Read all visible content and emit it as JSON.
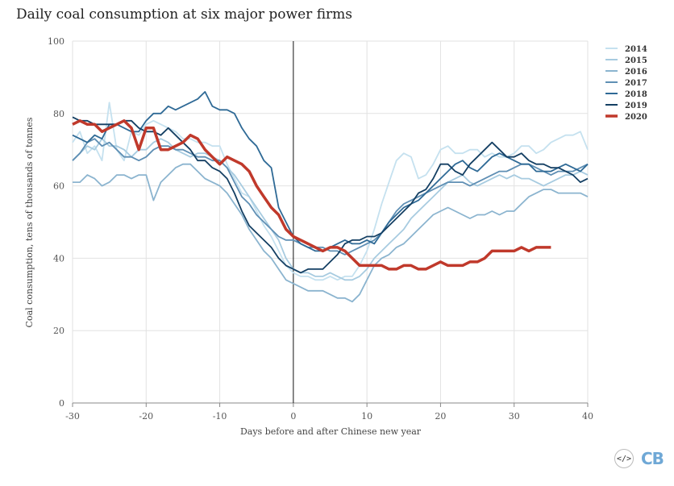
{
  "page": {
    "embed_symbol": "</>",
    "logo_text": "CB"
  },
  "chart_data": {
    "type": "line",
    "title": "Daily coal consumption at six major power firms",
    "xlabel": "Days before and after Chinese new year",
    "ylabel": "Coal consumption, tens of thousands of tonnes",
    "xlim": [
      -30,
      40
    ],
    "ylim": [
      0,
      100
    ],
    "xticks": [
      -30,
      -20,
      -10,
      0,
      10,
      20,
      30,
      40
    ],
    "yticks": [
      0,
      20,
      40,
      60,
      80,
      100
    ],
    "grid": true,
    "legend": "right",
    "vline_at": 0,
    "series": [
      {
        "name": "2014",
        "color": "#c5e1ef",
        "x": [
          -30,
          -29,
          -28,
          -27,
          -26,
          -25,
          -24,
          -23,
          -22,
          -21,
          -20,
          -19,
          -18,
          -17,
          -16,
          -15,
          -14,
          -13,
          -12,
          -11,
          -10,
          -9,
          -8,
          -7,
          -6,
          -5,
          -4,
          -3,
          -2,
          -1,
          0,
          1,
          2,
          3,
          4,
          5,
          6,
          7,
          8,
          9,
          10,
          11,
          12,
          13,
          14,
          15,
          16,
          17,
          18,
          19,
          20,
          21,
          22,
          23,
          24,
          25,
          26,
          27,
          28,
          29,
          30,
          31,
          32,
          33,
          34,
          35,
          36,
          37,
          38,
          39,
          40
        ],
        "values": [
          72,
          75,
          69,
          71,
          67,
          83,
          70,
          67,
          75,
          74,
          77,
          78,
          77,
          76,
          75,
          73,
          73,
          72,
          72,
          71,
          71,
          66,
          62,
          58,
          57,
          53,
          49,
          46,
          42,
          38,
          36,
          35,
          35,
          34,
          34,
          35,
          34,
          35,
          35,
          38,
          42,
          48,
          55,
          61,
          67,
          69,
          68,
          62,
          63,
          66,
          70,
          71,
          69,
          69,
          70,
          70,
          68,
          69,
          68,
          68,
          69,
          71,
          71,
          69,
          70,
          72,
          73,
          74,
          74,
          75,
          70
        ]
      },
      {
        "name": "2015",
        "color": "#a7cbe0",
        "x": [
          -30,
          -29,
          -28,
          -27,
          -26,
          -25,
          -24,
          -23,
          -22,
          -21,
          -20,
          -19,
          -18,
          -17,
          -16,
          -15,
          -14,
          -13,
          -12,
          -11,
          -10,
          -9,
          -8,
          -7,
          -6,
          -5,
          -4,
          -3,
          -2,
          -1,
          0,
          1,
          2,
          3,
          4,
          5,
          6,
          7,
          8,
          9,
          10,
          11,
          12,
          13,
          14,
          15,
          16,
          17,
          18,
          19,
          20,
          21,
          22,
          23,
          24,
          25,
          26,
          27,
          28,
          29,
          30,
          31,
          32,
          33,
          34,
          35,
          36,
          37,
          38,
          39,
          40
        ],
        "values": [
          67,
          69,
          71,
          70,
          73,
          71,
          71,
          70,
          68,
          70,
          70,
          72,
          73,
          72,
          70,
          69,
          68,
          69,
          69,
          68,
          67,
          65,
          63,
          60,
          57,
          54,
          51,
          48,
          45,
          40,
          37,
          36,
          36,
          35,
          35,
          36,
          35,
          34,
          34,
          35,
          37,
          40,
          42,
          44,
          46,
          48,
          51,
          53,
          55,
          57,
          59,
          61,
          62,
          63,
          61,
          60,
          61,
          62,
          63,
          62,
          63,
          62,
          62,
          61,
          60,
          61,
          62,
          63,
          63,
          64,
          63
        ]
      },
      {
        "name": "2016",
        "color": "#8bb4cf",
        "x": [
          -30,
          -29,
          -28,
          -27,
          -26,
          -25,
          -24,
          -23,
          -22,
          -21,
          -20,
          -19,
          -18,
          -17,
          -16,
          -15,
          -14,
          -13,
          -12,
          -11,
          -10,
          -9,
          -8,
          -7,
          -6,
          -5,
          -4,
          -3,
          -2,
          -1,
          0,
          1,
          2,
          3,
          4,
          5,
          6,
          7,
          8,
          9,
          10,
          11,
          12,
          13,
          14,
          15,
          16,
          17,
          18,
          19,
          20,
          21,
          22,
          23,
          24,
          25,
          26,
          27,
          28,
          29,
          30,
          31,
          32,
          33,
          34,
          35,
          36,
          37,
          38,
          39,
          40
        ],
        "values": [
          61,
          61,
          63,
          62,
          60,
          61,
          63,
          63,
          62,
          63,
          63,
          56,
          61,
          63,
          65,
          66,
          66,
          64,
          62,
          61,
          60,
          58,
          55,
          52,
          48,
          45,
          42,
          40,
          37,
          34,
          33,
          32,
          31,
          31,
          31,
          30,
          29,
          29,
          28,
          30,
          34,
          38,
          40,
          41,
          43,
          44,
          46,
          48,
          50,
          52,
          53,
          54,
          53,
          52,
          51,
          52,
          52,
          53,
          52,
          53,
          53,
          55,
          57,
          58,
          59,
          59,
          58,
          58,
          58,
          58,
          57
        ]
      },
      {
        "name": "2017",
        "color": "#5f8fb4",
        "x": [
          -30,
          -29,
          -28,
          -27,
          -26,
          -25,
          -24,
          -23,
          -22,
          -21,
          -20,
          -19,
          -18,
          -17,
          -16,
          -15,
          -14,
          -13,
          -12,
          -11,
          -10,
          -9,
          -8,
          -7,
          -6,
          -5,
          -4,
          -3,
          -2,
          -1,
          0,
          1,
          2,
          3,
          4,
          5,
          6,
          7,
          8,
          9,
          10,
          11,
          12,
          13,
          14,
          15,
          16,
          17,
          18,
          19,
          20,
          21,
          22,
          23,
          24,
          25,
          26,
          27,
          28,
          29,
          30,
          31,
          32,
          33,
          34,
          35,
          36,
          37,
          38,
          39,
          40
        ],
        "values": [
          67,
          69,
          72,
          73,
          71,
          72,
          70,
          68,
          68,
          67,
          68,
          70,
          71,
          71,
          70,
          70,
          69,
          68,
          68,
          67,
          67,
          65,
          61,
          57,
          55,
          52,
          50,
          48,
          46,
          45,
          45,
          44,
          43,
          43,
          43,
          42,
          42,
          41,
          42,
          43,
          44,
          45,
          47,
          50,
          53,
          55,
          56,
          57,
          58,
          59,
          60,
          61,
          61,
          61,
          60,
          61,
          62,
          63,
          64,
          64,
          65,
          66,
          66,
          65,
          64,
          63,
          64,
          64,
          64,
          65,
          66
        ]
      },
      {
        "name": "2018",
        "color": "#2f6a96",
        "x": [
          -30,
          -29,
          -28,
          -27,
          -26,
          -25,
          -24,
          -23,
          -22,
          -21,
          -20,
          -19,
          -18,
          -17,
          -16,
          -15,
          -14,
          -13,
          -12,
          -11,
          -10,
          -9,
          -8,
          -7,
          -6,
          -5,
          -4,
          -3,
          -2,
          -1,
          0,
          1,
          2,
          3,
          4,
          5,
          6,
          7,
          8,
          9,
          10,
          11,
          12,
          13,
          14,
          15,
          16,
          17,
          18,
          19,
          20,
          21,
          22,
          23,
          24,
          25,
          26,
          27,
          28,
          29,
          30,
          31,
          32,
          33,
          34,
          35,
          36,
          37,
          38,
          39,
          40
        ],
        "values": [
          74,
          73,
          72,
          74,
          73,
          77,
          77,
          76,
          75,
          75,
          78,
          80,
          80,
          82,
          81,
          82,
          83,
          84,
          86,
          82,
          81,
          81,
          80,
          76,
          73,
          71,
          67,
          65,
          54,
          50,
          46,
          44,
          43,
          42,
          42,
          43,
          44,
          45,
          44,
          44,
          45,
          44,
          47,
          50,
          52,
          54,
          55,
          56,
          58,
          60,
          62,
          64,
          66,
          67,
          65,
          64,
          66,
          68,
          69,
          68,
          67,
          66,
          66,
          64,
          64,
          64,
          65,
          66,
          65,
          64,
          66
        ]
      },
      {
        "name": "2019",
        "color": "#143f63",
        "x": [
          -30,
          -29,
          -28,
          -27,
          -26,
          -25,
          -24,
          -23,
          -22,
          -21,
          -20,
          -19,
          -18,
          -17,
          -16,
          -15,
          -14,
          -13,
          -12,
          -11,
          -10,
          -9,
          -8,
          -7,
          -6,
          -5,
          -4,
          -3,
          -2,
          -1,
          0,
          1,
          2,
          3,
          4,
          5,
          6,
          7,
          8,
          9,
          10,
          11,
          12,
          13,
          14,
          15,
          16,
          17,
          18,
          19,
          20,
          21,
          22,
          23,
          24,
          25,
          26,
          27,
          28,
          29,
          30,
          31,
          32,
          33,
          34,
          35,
          36,
          37,
          38,
          39,
          40
        ],
        "values": [
          79,
          78,
          78,
          77,
          77,
          77,
          77,
          78,
          78,
          76,
          75,
          75,
          74,
          76,
          74,
          72,
          70,
          67,
          67,
          65,
          64,
          62,
          58,
          53,
          49,
          47,
          45,
          43,
          40,
          38,
          37,
          36,
          37,
          37,
          37,
          39,
          41,
          44,
          45,
          45,
          46,
          46,
          47,
          49,
          51,
          53,
          55,
          58,
          59,
          62,
          66,
          66,
          64,
          63,
          66,
          68,
          70,
          72,
          70,
          68,
          68,
          69,
          67,
          66,
          66,
          65,
          65,
          64,
          63,
          61,
          62
        ]
      },
      {
        "name": "2020",
        "color": "#c0392b",
        "x": [
          -30,
          -29,
          -28,
          -27,
          -26,
          -25,
          -24,
          -23,
          -22,
          -21,
          -20,
          -19,
          -18,
          -17,
          -16,
          -15,
          -14,
          -13,
          -12,
          -11,
          -10,
          -9,
          -8,
          -7,
          -6,
          -5,
          -4,
          -3,
          -2,
          -1,
          0,
          1,
          2,
          3,
          4,
          5,
          6,
          7,
          8,
          9,
          10,
          11,
          12,
          13,
          14,
          15,
          16,
          17,
          18,
          19,
          20,
          21,
          22,
          23,
          24,
          25,
          26,
          27,
          28,
          29,
          30,
          31,
          32,
          33,
          34,
          35
        ],
        "values": [
          77,
          78,
          77,
          77,
          75,
          76,
          77,
          78,
          76,
          70,
          76,
          76,
          70,
          70,
          71,
          72,
          74,
          73,
          70,
          68,
          66,
          68,
          67,
          66,
          64,
          60,
          57,
          54,
          52,
          48,
          46,
          45,
          44,
          43,
          42,
          43,
          43,
          42,
          40,
          38,
          38,
          38,
          38,
          37,
          37,
          38,
          38,
          37,
          37,
          38,
          39,
          38,
          38,
          38,
          39,
          39,
          40,
          42,
          42,
          42,
          42,
          43,
          42,
          43,
          43,
          43
        ]
      }
    ]
  }
}
